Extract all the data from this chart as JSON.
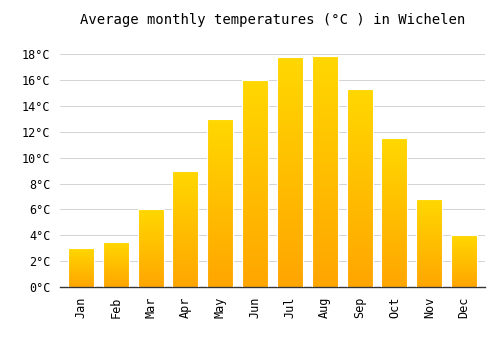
{
  "title": "Average monthly temperatures (°C ) in Wichelen",
  "months": [
    "Jan",
    "Feb",
    "Mar",
    "Apr",
    "May",
    "Jun",
    "Jul",
    "Aug",
    "Sep",
    "Oct",
    "Nov",
    "Dec"
  ],
  "values": [
    3.0,
    3.5,
    6.0,
    9.0,
    13.0,
    16.0,
    17.8,
    17.9,
    15.3,
    11.5,
    6.8,
    4.0
  ],
  "bar_color_top": "#FFC84A",
  "bar_color_bottom": "#FFA500",
  "bar_edge_color": "#E8E8E8",
  "background_color": "#FFFFFF",
  "grid_color": "#CCCCCC",
  "ylim": [
    0,
    19.5
  ],
  "yticks": [
    0,
    2,
    4,
    6,
    8,
    10,
    12,
    14,
    16,
    18
  ],
  "ylabel_suffix": "°C",
  "title_fontsize": 10,
  "tick_fontsize": 8.5,
  "font_family": "monospace",
  "bar_width": 0.75
}
